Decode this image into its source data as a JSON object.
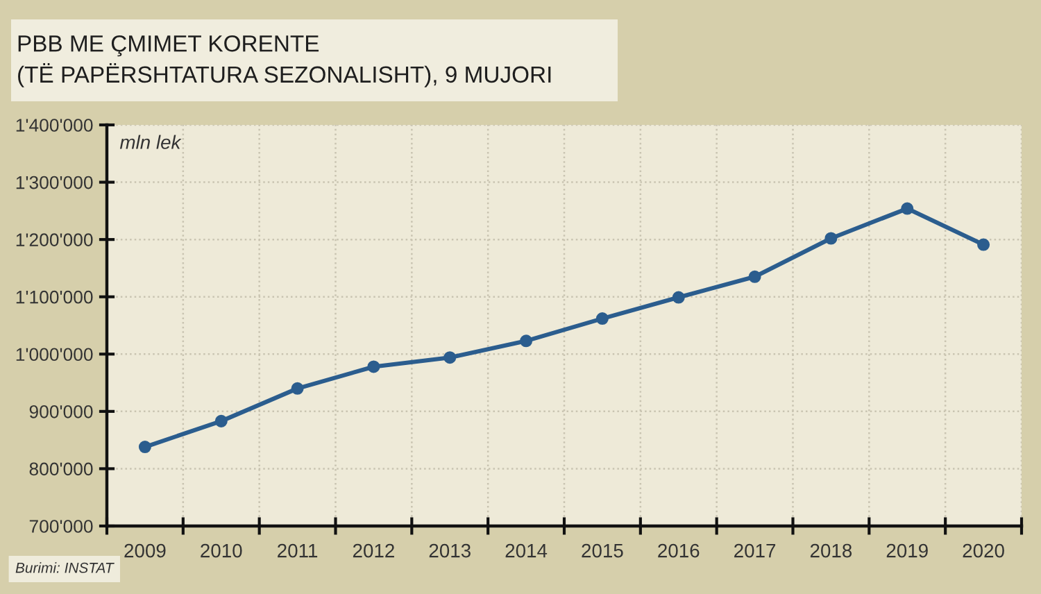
{
  "chart_data": {
    "type": "line",
    "title": "PBB ME ÇMIMET KORENTE\n(TË PAPËRSHTATURA SEZONALISHT), 9 MUJORI",
    "ylabel": "mln lek",
    "annotations": [
      "Burimi: INSTAT"
    ],
    "categories": [
      "2009",
      "2010",
      "2011",
      "2012",
      "2013",
      "2014",
      "2015",
      "2016",
      "2017",
      "2018",
      "2019",
      "2020"
    ],
    "series": [
      {
        "color": "#2b5d8e",
        "values": [
          838000,
          883000,
          940000,
          978000,
          994000,
          1023000,
          1062000,
          1099000,
          1135000,
          1202000,
          1254000,
          1191000
        ]
      }
    ],
    "ylim": [
      700000,
      1400000
    ],
    "yticks": [
      {
        "value": 700000,
        "label": "700'000"
      },
      {
        "value": 800000,
        "label": "800'000"
      },
      {
        "value": 900000,
        "label": "900'000"
      },
      {
        "value": 1000000,
        "label": "1'000'000"
      },
      {
        "value": 1100000,
        "label": "1'100'000"
      },
      {
        "value": 1200000,
        "label": "1'200'000"
      },
      {
        "value": 1300000,
        "label": "1'300'000"
      },
      {
        "value": 1400000,
        "label": "1'400'000"
      }
    ],
    "grid": true,
    "marker": "circle",
    "line_style": "solid"
  }
}
